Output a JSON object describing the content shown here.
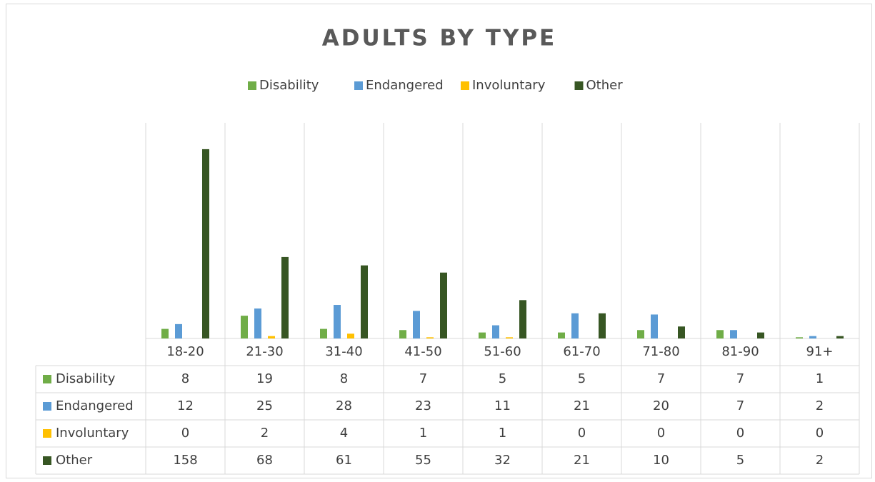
{
  "chart_data": {
    "type": "bar",
    "title": "ADULTS BY TYPE",
    "categories": [
      "18-20",
      "21-30",
      "31-40",
      "41-50",
      "51-60",
      "61-70",
      "71-80",
      "81-90",
      "91+"
    ],
    "series": [
      {
        "name": "Disability",
        "color": "#70ad47",
        "values": [
          8,
          19,
          8,
          7,
          5,
          5,
          7,
          7,
          1
        ]
      },
      {
        "name": "Endangered",
        "color": "#5b9bd5",
        "values": [
          12,
          25,
          28,
          23,
          11,
          21,
          20,
          7,
          2
        ]
      },
      {
        "name": "Involuntary",
        "color": "#ffc000",
        "values": [
          0,
          2,
          4,
          1,
          1,
          0,
          0,
          0,
          0
        ]
      },
      {
        "name": "Other",
        "color": "#375623",
        "values": [
          158,
          68,
          61,
          55,
          32,
          21,
          10,
          5,
          2
        ]
      }
    ],
    "ylim": [
      0,
      180
    ],
    "legend": "top"
  }
}
